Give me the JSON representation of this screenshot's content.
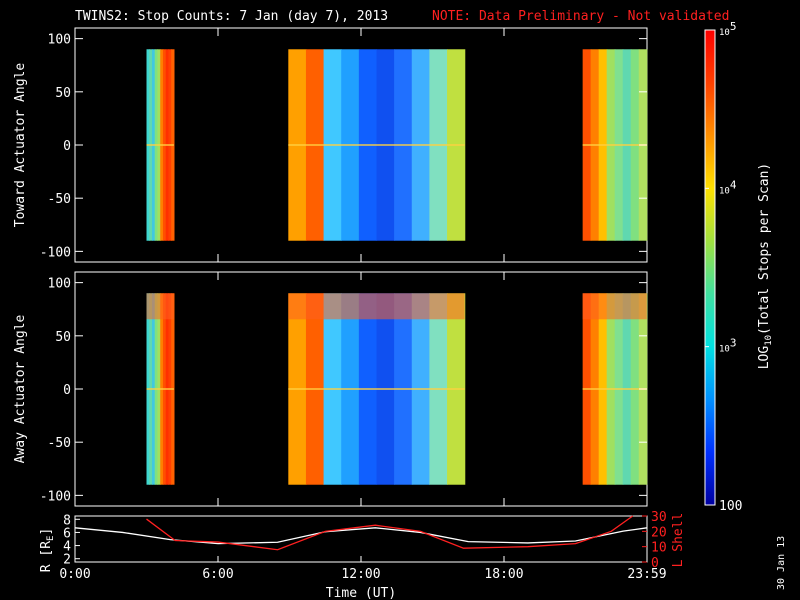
{
  "header": {
    "title": "TWINS2: Stop Counts:  7 Jan (day    7), 2013",
    "note": "NOTE: Data Preliminary - Not validated"
  },
  "footer": {
    "plot_date": "30 Jan 13"
  },
  "chart_data": [
    {
      "type": "heatmap",
      "ylabel": "Toward Actuator Angle",
      "ylim": [
        -110,
        110
      ],
      "yticks": [
        "100",
        "50",
        "0",
        "-50",
        "-100"
      ],
      "angle_range": [
        -90,
        90
      ],
      "data_intervals_hours": [
        [
          3.0,
          4.15
        ],
        [
          8.95,
          16.35
        ],
        [
          21.3,
          23.99
        ]
      ]
    },
    {
      "type": "heatmap",
      "ylabel": "Away Actuator Angle",
      "ylim": [
        -110,
        110
      ],
      "yticks": [
        "100",
        "50",
        "0",
        "-50",
        "-100"
      ],
      "angle_range": [
        -90,
        90
      ],
      "data_intervals_hours": [
        [
          3.0,
          4.15
        ],
        [
          8.95,
          16.35
        ],
        [
          21.3,
          23.99
        ]
      ]
    },
    {
      "type": "line",
      "xlabel": "Time (UT)",
      "xticks": [
        "0:00",
        "6:00",
        "12:00",
        "18:00",
        "23:59"
      ],
      "xlim_hours": [
        0,
        24
      ],
      "ylabel_left": "R [R",
      "ylabel_left_sub": "E",
      "ylabel_left_end": "]",
      "yticks_left": [
        "8",
        "6",
        "4",
        "2"
      ],
      "ylim_left": [
        1.5,
        8.5
      ],
      "ylabel_right": "L Shell",
      "yticks_right": [
        "30",
        "20",
        "10",
        "0"
      ],
      "ylim_right": [
        0,
        30
      ],
      "series": [
        {
          "axis": "left",
          "color": "#ffffff",
          "x": [
            0,
            2,
            4,
            6,
            8.5,
            10.5,
            12.6,
            14.5,
            16.5,
            19,
            21,
            23,
            24
          ],
          "y": [
            6.7,
            6.0,
            4.9,
            4.3,
            4.5,
            6.1,
            6.7,
            6.0,
            4.6,
            4.4,
            4.7,
            6.2,
            6.7
          ]
        },
        {
          "axis": "right",
          "color": "#ff2020",
          "x": [
            3.0,
            4.2,
            6,
            8.5,
            10.5,
            12.6,
            14.5,
            16.3,
            19,
            21,
            22.5,
            23.4
          ],
          "y": [
            28,
            14,
            13,
            8,
            20,
            24,
            20,
            9,
            10,
            12,
            20,
            30
          ]
        }
      ]
    }
  ],
  "colorbar": {
    "label": "LOG",
    "label_sub": "10",
    "label_rest": "(Total Stops per Scan)",
    "ticks": [
      {
        "base": "10",
        "exp": "5"
      },
      {
        "base": "10",
        "exp": "4"
      },
      {
        "base": "10",
        "exp": "3"
      },
      {
        "base": "100",
        "exp": ""
      }
    ],
    "colors": [
      "#0000a0",
      "#0030ff",
      "#0090ff",
      "#00e0e0",
      "#40e0a0",
      "#a0e040",
      "#ffe000",
      "#ff9000",
      "#ff4000",
      "#ff0000"
    ]
  }
}
